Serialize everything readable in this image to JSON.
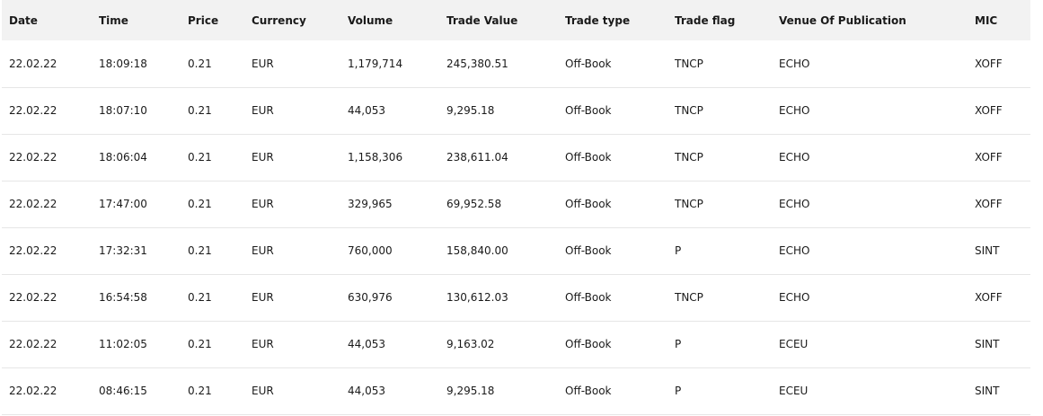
{
  "columns": [
    "Date",
    "Time",
    "Price",
    "Currency",
    "Volume",
    "Trade Value",
    "Trade type",
    "Trade flag",
    "Venue Of Publication",
    "MIC"
  ],
  "rows": [
    [
      "22.02.22",
      "18:09:18",
      "0.21",
      "EUR",
      "1,179,714",
      "245,380.51",
      "Off-Book",
      "TNCP",
      "ECHO",
      "XOFF"
    ],
    [
      "22.02.22",
      "18:07:10",
      "0.21",
      "EUR",
      "44,053",
      "9,295.18",
      "Off-Book",
      "TNCP",
      "ECHO",
      "XOFF"
    ],
    [
      "22.02.22",
      "18:06:04",
      "0.21",
      "EUR",
      "1,158,306",
      "238,611.04",
      "Off-Book",
      "TNCP",
      "ECHO",
      "XOFF"
    ],
    [
      "22.02.22",
      "17:47:00",
      "0.21",
      "EUR",
      "329,965",
      "69,952.58",
      "Off-Book",
      "TNCP",
      "ECHO",
      "XOFF"
    ],
    [
      "22.02.22",
      "17:32:31",
      "0.21",
      "EUR",
      "760,000",
      "158,840.00",
      "Off-Book",
      "P",
      "ECHO",
      "SINT"
    ],
    [
      "22.02.22",
      "16:54:58",
      "0.21",
      "EUR",
      "630,976",
      "130,612.03",
      "Off-Book",
      "TNCP",
      "ECHO",
      "XOFF"
    ],
    [
      "22.02.22",
      "11:02:05",
      "0.21",
      "EUR",
      "44,053",
      "9,163.02",
      "Off-Book",
      "P",
      "ECEU",
      "SINT"
    ],
    [
      "22.02.22",
      "08:46:15",
      "0.21",
      "EUR",
      "44,053",
      "9,295.18",
      "Off-Book",
      "P",
      "ECEU",
      "SINT"
    ]
  ]
}
